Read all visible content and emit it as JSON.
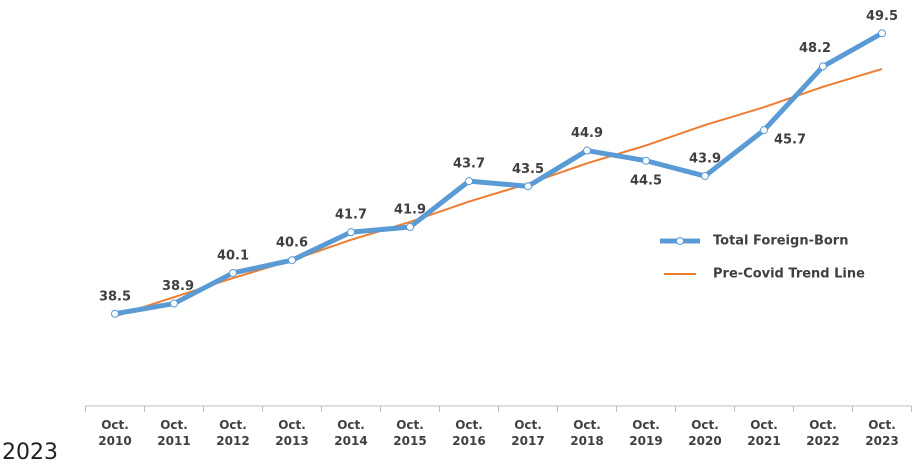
{
  "chart_data": {
    "type": "line",
    "categories": [
      "Oct. 2010",
      "Oct. 2011",
      "Oct. 2012",
      "Oct. 2013",
      "Oct. 2014",
      "Oct. 2015",
      "Oct. 2016",
      "Oct. 2017",
      "Oct. 2018",
      "Oct. 2019",
      "Oct. 2020",
      "Oct. 2021",
      "Oct. 2022",
      "Oct. 2023"
    ],
    "series": [
      {
        "name": "Total Foreign-Born",
        "color": "#5b9bd5",
        "values": [
          38.5,
          38.9,
          40.1,
          40.6,
          41.7,
          41.9,
          43.7,
          43.5,
          44.9,
          44.5,
          43.9,
          45.7,
          48.2,
          49.5
        ],
        "markers": true,
        "data_labels": true
      },
      {
        "name": "Pre-Covid Trend Line",
        "color": "#ed7d31",
        "values": [
          38.4,
          39.15,
          39.9,
          40.6,
          41.4,
          42.1,
          42.9,
          43.6,
          44.4,
          45.1,
          45.9,
          46.6,
          47.4,
          48.1
        ],
        "markers": false,
        "data_labels": false
      }
    ],
    "ylim": [
      35,
      50
    ],
    "legend": "right",
    "footnote": "2023"
  }
}
